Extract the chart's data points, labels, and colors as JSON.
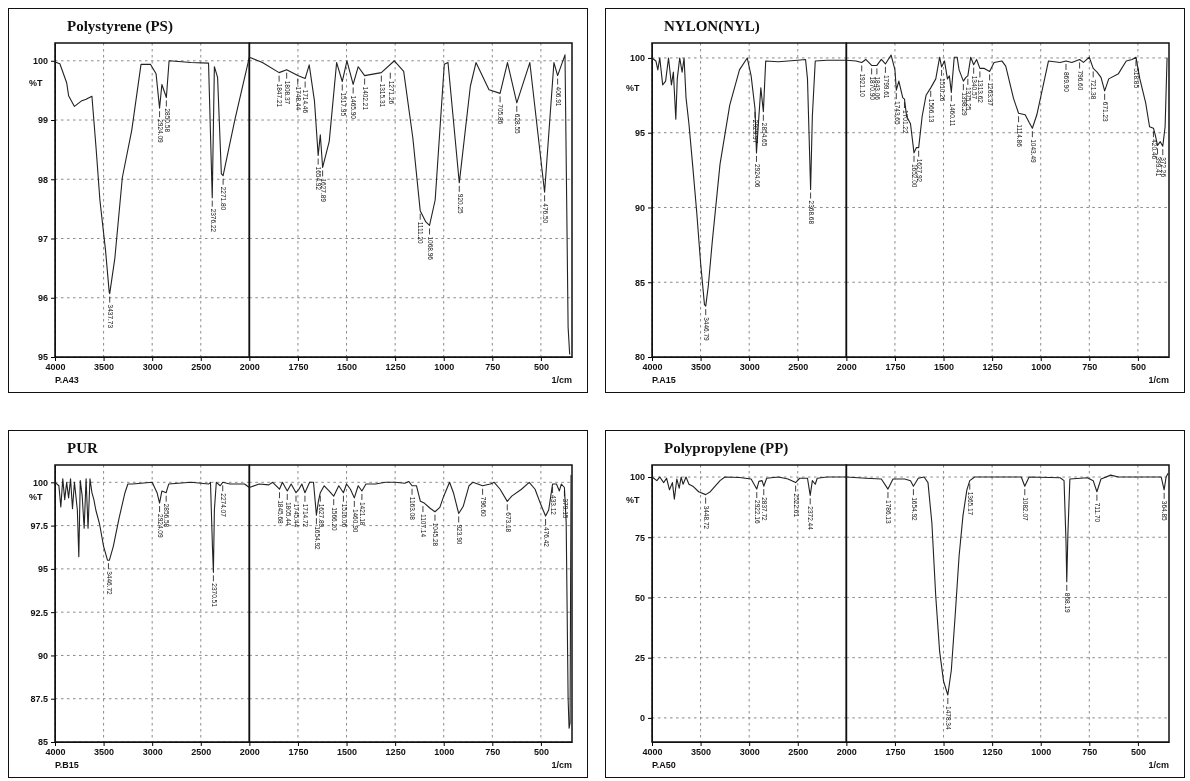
{
  "chart_data": [
    {
      "type": "line",
      "title": "Polystyrene (PS)",
      "ylabel": "%T",
      "xlim": [
        4000,
        2000
      ],
      "ylim": [
        95,
        100.3
      ],
      "xticks": [
        4000,
        3500,
        3000,
        2500
      ],
      "yticks": [
        95,
        96,
        97,
        98,
        99,
        100
      ],
      "grid": true,
      "series": [
        {
          "color": "#222222",
          "x": [
            4000,
            3950,
            3880,
            3860,
            3800,
            3730,
            3680,
            3620,
            3577,
            3538,
            3480,
            3442,
            3437,
            3384,
            3307,
            3210,
            3115,
            3018,
            2960,
            2924,
            2900,
            2854,
            2826,
            2600,
            2420,
            2382,
            2360,
            2327,
            2288,
            2270,
            2150,
            2000
          ],
          "values": [
            99.98,
            99.95,
            99.63,
            99.41,
            99.23,
            99.32,
            99.35,
            99.4,
            98.52,
            97.65,
            96.8,
            96.09,
            96.07,
            96.67,
            98.03,
            98.83,
            99.94,
            99.94,
            99.78,
            99.2,
            99.6,
            99.38,
            100,
            99.97,
            99.96,
            97.69,
            99.9,
            99.72,
            98.09,
            98.06,
            99.0,
            100.06
          ]
        }
      ],
      "annotations": [
        "P.A43",
        {
          "text": "3437.73",
          "x": 3437,
          "y": 96.07
        },
        {
          "text": "2924.09",
          "x": 2924,
          "y": 99.2
        },
        {
          "text": "2850.58",
          "x": 2854,
          "y": 99.38
        },
        {
          "text": "2376.22",
          "x": 2382,
          "y": 97.69
        },
        {
          "text": "2271.80",
          "x": 2270,
          "y": 98.06
        }
      ]
    },
    {
      "type": "line",
      "xlabel": "1/cm",
      "xlim": [
        2000,
        340
      ],
      "ylim": [
        95,
        100.3
      ],
      "xticks": [
        2000,
        1750,
        1500,
        1250,
        1000,
        750,
        500
      ],
      "yticks": [
        95,
        96,
        97,
        98,
        99,
        100
      ],
      "grid": true,
      "tick_labels": "x",
      "series": [
        {
          "color": "#222222",
          "x": [
            2000,
            1933,
            1847,
            1808,
            1751,
            1713,
            1692,
            1665,
            1646,
            1635,
            1623,
            1589,
            1551,
            1522,
            1498,
            1466,
            1440,
            1407,
            1321,
            1254,
            1206,
            1159,
            1121,
            1092,
            1073,
            1044,
            997,
            978,
            920,
            863,
            834,
            767,
            710,
            672,
            624,
            557,
            481,
            433,
            414,
            376,
            360,
            352
          ],
          "values": [
            100.06,
            99.97,
            99.8,
            99.85,
            99.75,
            99.7,
            99.93,
            99.32,
            98.4,
            98.75,
            98.2,
            98.64,
            99.97,
            99.65,
            100,
            99.6,
            99.9,
            99.75,
            99.8,
            100,
            99.82,
            98.7,
            97.47,
            97.28,
            97.22,
            97.65,
            99.94,
            99.97,
            97.94,
            99.57,
            99.97,
            99.51,
            99.45,
            99.97,
            99.29,
            99.97,
            97.78,
            99.97,
            99.75,
            100.1,
            95.5,
            95.05
          ]
        }
      ],
      "annotations": [
        {
          "text": "1847.21",
          "x": 1847,
          "y": 99.8
        },
        {
          "text": "1808.37",
          "x": 1808,
          "y": 99.85
        },
        {
          "text": "1748.44",
          "x": 1751,
          "y": 99.75
        },
        {
          "text": "1714.46",
          "x": 1713,
          "y": 99.7
        },
        {
          "text": "1654.92",
          "x": 1646,
          "y": 98.4
        },
        {
          "text": "1627.89",
          "x": 1623,
          "y": 98.2
        },
        {
          "text": "1517.95",
          "x": 1522,
          "y": 99.65
        },
        {
          "text": "1465.90",
          "x": 1466,
          "y": 99.6
        },
        {
          "text": "1402.21",
          "x": 1407,
          "y": 99.75
        },
        {
          "text": "1315.31",
          "x": 1321,
          "y": 99.8
        },
        {
          "text": "1271.26",
          "x": 1275,
          "y": 99.85
        },
        {
          "text": "1111.20",
          "x": 1121,
          "y": 97.47
        },
        {
          "text": "1068.96",
          "x": 1073,
          "y": 97.22
        },
        {
          "text": "920.25",
          "x": 920,
          "y": 97.94
        },
        {
          "text": "705.86",
          "x": 710,
          "y": 99.45
        },
        {
          "text": "628.55",
          "x": 624,
          "y": 99.29
        },
        {
          "text": "476.50",
          "x": 481,
          "y": 97.78
        },
        {
          "text": "406.91",
          "x": 414,
          "y": 99.75
        }
      ]
    },
    {
      "type": "line",
      "title": "NYLON(NYL)",
      "ylabel": "%T",
      "xlim": [
        4000,
        2000
      ],
      "ylim": [
        80,
        101
      ],
      "xticks": [
        4000,
        3500,
        3000,
        2500
      ],
      "yticks": [
        80,
        85,
        90,
        95,
        100
      ],
      "grid": true,
      "series": [
        {
          "color": "#222222",
          "x": [
            4000,
            3960,
            3940,
            3920,
            3890,
            3860,
            3830,
            3800,
            3780,
            3755,
            3740,
            3715,
            3690,
            3670,
            3650,
            3620,
            3580,
            3540,
            3500,
            3460,
            3447,
            3420,
            3380,
            3300,
            3200,
            3100,
            3020,
            2980,
            2940,
            2925,
            2900,
            2880,
            2854,
            2830,
            2700,
            2500,
            2420,
            2400,
            2368,
            2350,
            2320,
            2200,
            2000
          ],
          "values": [
            100,
            99.8,
            99.2,
            100,
            98.2,
            98.45,
            100,
            98.2,
            99.05,
            95.9,
            98.6,
            100,
            99.05,
            100,
            97.35,
            95.6,
            92.7,
            89.7,
            86.3,
            83.5,
            83.4,
            84.8,
            87.7,
            92.9,
            96.85,
            99.2,
            100,
            98.8,
            96.6,
            93.65,
            96.1,
            98,
            96.4,
            99.8,
            99.75,
            99.85,
            99.9,
            98.6,
            91.2,
            96.1,
            99.8,
            99.85,
            99.85
          ]
        }
      ],
      "annotations": [
        "P.A15",
        {
          "text": "3446.79",
          "x": 3447,
          "y": 83.4
        },
        {
          "text": "2929.97",
          "x": 2940,
          "y": 96.6
        },
        {
          "text": "2924.06",
          "x": 2925,
          "y": 93.65
        },
        {
          "text": "2854.65",
          "x": 2854,
          "y": 96.4
        },
        {
          "text": "2368.68",
          "x": 2368,
          "y": 91.2
        }
      ]
    },
    {
      "type": "line",
      "xlabel": "1/cm",
      "xlim": [
        2000,
        340
      ],
      "ylim": [
        80,
        101
      ],
      "xticks": [
        2000,
        1750,
        1500,
        1250,
        1000,
        750,
        500
      ],
      "yticks": [
        80,
        85,
        90,
        95,
        100
      ],
      "grid": true,
      "tick_labels": "x",
      "series": [
        {
          "color": "#222222",
          "x": [
            2000,
            1950,
            1921,
            1900,
            1870,
            1843,
            1820,
            1799,
            1770,
            1750,
            1743,
            1730,
            1710,
            1701,
            1690,
            1670,
            1652,
            1640,
            1628,
            1610,
            1590,
            1566,
            1540,
            1520,
            1510,
            1495,
            1480,
            1470,
            1460,
            1445,
            1430,
            1420,
            1398,
            1385,
            1375,
            1360,
            1345,
            1330,
            1313,
            1290,
            1263,
            1240,
            1200,
            1180,
            1140,
            1114,
            1080,
            1060,
            1043,
            1020,
            1000,
            960,
            900,
            870,
            840,
            800,
            780,
            750,
            730,
            710,
            690,
            671,
            650,
            600,
            560,
            530,
            510,
            490,
            460,
            440,
            420,
            410,
            399,
            385,
            372,
            360,
            350
          ],
          "values": [
            99.85,
            99.8,
            99.7,
            99.9,
            99.5,
            99.5,
            99.9,
            99.6,
            100.2,
            99.2,
            97.85,
            98.45,
            97.35,
            97.25,
            96.1,
            95.6,
            93.65,
            94.0,
            94.0,
            96.1,
            97.5,
            98,
            98.6,
            100.05,
            99.4,
            99.8,
            98.6,
            98.8,
            97.7,
            100.05,
            100.05,
            99.2,
            98.45,
            98.7,
            98.8,
            100.05,
            99.55,
            99.9,
            99.3,
            99.3,
            99.1,
            99.7,
            99.8,
            99.45,
            97.3,
            96.3,
            96.2,
            95.7,
            95.3,
            96.2,
            97.4,
            99.8,
            99.7,
            99.8,
            99.7,
            99.9,
            99.7,
            100.05,
            99.3,
            99.05,
            98.7,
            97.8,
            98.6,
            98.95,
            99.8,
            99.9,
            100.05,
            98.6,
            97.0,
            95.4,
            95.3,
            94.8,
            94.15,
            94.4,
            94.1,
            95.4,
            100
          ]
        }
      ],
      "annotations": [
        {
          "text": "1921.10",
          "x": 1921,
          "y": 99.7
        },
        {
          "text": "1870.90",
          "x": 1870,
          "y": 99.5
        },
        {
          "text": "1843.06",
          "x": 1843,
          "y": 99.5
        },
        {
          "text": "1799.61",
          "x": 1799,
          "y": 99.6
        },
        {
          "text": "1743.65",
          "x": 1743,
          "y": 97.85
        },
        {
          "text": "1701.22",
          "x": 1701,
          "y": 97.25
        },
        {
          "text": "1652.00",
          "x": 1652,
          "y": 93.65
        },
        {
          "text": "1627.92",
          "x": 1628,
          "y": 94.0
        },
        {
          "text": "1566.13",
          "x": 1566,
          "y": 98
        },
        {
          "text": "1510.26",
          "x": 1510,
          "y": 99.4
        },
        {
          "text": "1460.11",
          "x": 1460,
          "y": 97.7
        },
        {
          "text": "1398.29",
          "x": 1398,
          "y": 98.45
        },
        {
          "text": "1375.25",
          "x": 1375,
          "y": 98.8
        },
        {
          "text": "1340.57",
          "x": 1345,
          "y": 99.55
        },
        {
          "text": "1313.62",
          "x": 1313,
          "y": 99.3
        },
        {
          "text": "1263.37",
          "x": 1263,
          "y": 99.1
        },
        {
          "text": "1114.86",
          "x": 1114,
          "y": 96.3
        },
        {
          "text": "1043.49",
          "x": 1043,
          "y": 95.3
        },
        {
          "text": "869.90",
          "x": 870,
          "y": 99.8
        },
        {
          "text": "796.60",
          "x": 800,
          "y": 99.9
        },
        {
          "text": "721.38",
          "x": 730,
          "y": 99.3
        },
        {
          "text": "671.23",
          "x": 671,
          "y": 97.8
        },
        {
          "text": "518.85",
          "x": 510,
          "y": 100.05
        },
        {
          "text": "420.46",
          "x": 420,
          "y": 95.3
        },
        {
          "text": "399.41",
          "x": 399,
          "y": 94.15
        },
        {
          "text": "372.26",
          "x": 372,
          "y": 94.1
        }
      ]
    },
    {
      "type": "line",
      "title": "PUR",
      "ylabel": "%T",
      "xlim": [
        4000,
        2000
      ],
      "ylim": [
        85,
        101
      ],
      "xticks": [
        4000,
        3500,
        3000,
        2500
      ],
      "yticks": [
        85,
        87.5,
        90,
        92.5,
        95,
        97.5,
        100
      ],
      "grid": true,
      "series": [
        {
          "color": "#222222",
          "x": [
            4000,
            3960,
            3940,
            3920,
            3900,
            3880,
            3860,
            3840,
            3820,
            3800,
            3770,
            3755,
            3740,
            3720,
            3700,
            3680,
            3660,
            3640,
            3620,
            3600,
            3580,
            3540,
            3500,
            3460,
            3440,
            3400,
            3340,
            3280,
            3250,
            3200,
            3000,
            2950,
            2924,
            2900,
            2856,
            2830,
            2600,
            2420,
            2400,
            2380,
            2370,
            2360,
            2340,
            2300,
            2274,
            2200,
            2050,
            2000
          ],
          "values": [
            100,
            99.8,
            98.57,
            100.2,
            99,
            100,
            99.1,
            100.2,
            98.47,
            100,
            98.4,
            95.7,
            100.1,
            99.2,
            97.35,
            100.2,
            97.35,
            100.2,
            99.4,
            99,
            98.4,
            97.55,
            96.3,
            95.5,
            95.5,
            96.3,
            97.95,
            99.4,
            99.9,
            99.9,
            100,
            99.4,
            98.8,
            99.5,
            99.4,
            99.9,
            100,
            99.9,
            100,
            96.3,
            94.8,
            98.4,
            100,
            99.8,
            100,
            99.9,
            99.9,
            99.7
          ]
        }
      ],
      "annotations": [
        "P.B15",
        {
          "text": "3446.72",
          "x": 3450,
          "y": 95.5
        },
        {
          "text": "2924.09",
          "x": 2924,
          "y": 98.8
        },
        {
          "text": "2856.58",
          "x": 2856,
          "y": 99.4
        },
        {
          "text": "2370.51",
          "x": 2370,
          "y": 94.8
        },
        {
          "text": "2274.07",
          "x": 2274,
          "y": 100
        }
      ]
    },
    {
      "type": "line",
      "xlabel": "1/cm",
      "xlim": [
        2000,
        340
      ],
      "ylim": [
        85,
        101
      ],
      "xticks": [
        2000,
        1750,
        1500,
        1250,
        1000,
        750,
        500
      ],
      "yticks": [
        85,
        87.5,
        90,
        92.5,
        95,
        97.5,
        100
      ],
      "grid": true,
      "tick_labels": "x",
      "series": [
        {
          "color": "#222222",
          "x": [
            2000,
            1950,
            1900,
            1880,
            1845,
            1830,
            1805,
            1785,
            1760,
            1745,
            1730,
            1714,
            1690,
            1670,
            1655,
            1645,
            1635,
            1615,
            1590,
            1566,
            1540,
            1516,
            1500,
            1480,
            1460,
            1440,
            1421,
            1400,
            1350,
            1300,
            1250,
            1200,
            1180,
            1163,
            1140,
            1120,
            1100,
            1070,
            1045,
            1020,
            1000,
            970,
            950,
            923,
            900,
            870,
            850,
            800,
            760,
            740,
            710,
            673,
            650,
            600,
            560,
            530,
            500,
            476,
            460,
            440,
            420,
            405,
            395,
            379,
            370,
            360,
            355,
            350,
            345
          ],
          "values": [
            99.7,
            99.9,
            99.85,
            100,
            99.6,
            100,
            99.5,
            99.9,
            99.4,
            99.6,
            99.9,
            99.4,
            100,
            100,
            98.1,
            98.9,
            99.4,
            99.8,
            99.5,
            99.2,
            99.8,
            99.4,
            99.9,
            99.6,
            99.1,
            99.8,
            99.5,
            99.9,
            99.9,
            100,
            100,
            99.95,
            100.05,
            99.8,
            99.8,
            98.9,
            98.8,
            98.5,
            98.3,
            98.55,
            99.2,
            100,
            99.4,
            98.2,
            98.6,
            99.8,
            100,
            99.8,
            99.9,
            100,
            99.6,
            98.9,
            99.2,
            99.6,
            100,
            99.6,
            98.7,
            98.05,
            98.4,
            99.9,
            99.9,
            99.5,
            99.9,
            99.7,
            97.7,
            87.5,
            85.8,
            86.1,
            100.4
          ]
        }
      ],
      "annotations": [
        {
          "text": "1845.68",
          "x": 1845,
          "y": 99.6
        },
        {
          "text": "1805.44",
          "x": 1805,
          "y": 99.5
        },
        {
          "text": "1745.44",
          "x": 1760,
          "y": 99.4
        },
        {
          "text": "1714.72",
          "x": 1714,
          "y": 99.4
        },
        {
          "text": "1654.92",
          "x": 1655,
          "y": 98.1
        },
        {
          "text": "1627.89",
          "x": 1635,
          "y": 99.4
        },
        {
          "text": "1566.20",
          "x": 1566,
          "y": 99.2
        },
        {
          "text": "1516.06",
          "x": 1516,
          "y": 99.4
        },
        {
          "text": "1460.90",
          "x": 1460,
          "y": 99.1
        },
        {
          "text": "1421.18",
          "x": 1421,
          "y": 99.5
        },
        {
          "text": "1163.08",
          "x": 1163,
          "y": 99.8
        },
        {
          "text": "1107.14",
          "x": 1107,
          "y": 98.8
        },
        {
          "text": "1045.28",
          "x": 1045,
          "y": 98.3
        },
        {
          "text": "923.90",
          "x": 923,
          "y": 98.2
        },
        {
          "text": "796.60",
          "x": 800,
          "y": 99.8
        },
        {
          "text": "673.18",
          "x": 673,
          "y": 98.9
        },
        {
          "text": "476.42",
          "x": 476,
          "y": 98.05
        },
        {
          "text": "433.12",
          "x": 440,
          "y": 99.9
        },
        {
          "text": "379.15",
          "x": 379,
          "y": 99.7
        }
      ]
    },
    {
      "type": "line",
      "title": "Polypropylene (PP)",
      "ylabel": "%T",
      "xlim": [
        4000,
        2000
      ],
      "ylim": [
        -10,
        105
      ],
      "xticks": [
        4000,
        3500,
        3000,
        2500
      ],
      "yticks": [
        0,
        25,
        50,
        75,
        100
      ],
      "grid": true,
      "series": [
        {
          "color": "#222222",
          "x": [
            4000,
            3950,
            3920,
            3880,
            3850,
            3820,
            3790,
            3770,
            3745,
            3720,
            3700,
            3680,
            3650,
            3620,
            3580,
            3520,
            3448,
            3400,
            3300,
            3250,
            3100,
            2980,
            2922,
            2900,
            2867,
            2850,
            2820,
            2700,
            2600,
            2522,
            2480,
            2400,
            2372,
            2350,
            2320,
            2300,
            2200,
            2000
          ],
          "values": [
            100,
            98.5,
            100,
            97.7,
            99.5,
            94.7,
            97.7,
            90.8,
            99.2,
            95.4,
            100,
            97,
            100,
            97,
            96.2,
            93.9,
            92.7,
            93.9,
            98.5,
            100,
            99.8,
            99.2,
            95,
            98.2,
            98.5,
            96.2,
            99.5,
            100,
            99.2,
            97.7,
            99.5,
            99.5,
            92.4,
            98.5,
            97,
            99.5,
            100,
            100
          ]
        }
      ],
      "annotations": [
        "P.A50",
        {
          "text": "3448.72",
          "x": 3448,
          "y": 92.7
        },
        {
          "text": "2922.16",
          "x": 2922,
          "y": 95
        },
        {
          "text": "2837.72",
          "x": 2850,
          "y": 96.2
        },
        {
          "text": "2522.61",
          "x": 2522,
          "y": 97.7
        },
        {
          "text": "2372.44",
          "x": 2372,
          "y": 92.4
        }
      ]
    },
    {
      "type": "line",
      "xlabel": "1/cm",
      "xlim": [
        2000,
        340
      ],
      "ylim": [
        -10,
        105
      ],
      "xticks": [
        2000,
        1750,
        1500,
        1250,
        1000,
        750,
        500
      ],
      "yticks": [
        0,
        25,
        50,
        75,
        100
      ],
      "grid": true,
      "tick_labels": "x",
      "series": [
        {
          "color": "#222222",
          "x": [
            2000,
            1900,
            1820,
            1786,
            1760,
            1700,
            1670,
            1655,
            1630,
            1600,
            1580,
            1560,
            1540,
            1520,
            1500,
            1478,
            1460,
            1440,
            1420,
            1400,
            1380,
            1365,
            1340,
            1200,
            1100,
            1082,
            1060,
            900,
            880,
            870,
            866,
            860,
            850,
            760,
            730,
            711,
            690,
            640,
            600,
            500,
            380,
            365,
            355,
            345
          ],
          "values": [
            100,
            99.5,
            99.2,
            95,
            99.2,
            99.2,
            98.5,
            96.2,
            99.5,
            100,
            97.7,
            80.9,
            50.4,
            27.5,
            15.3,
            9.5,
            19.8,
            42.7,
            67.2,
            84,
            94.7,
            98.5,
            100,
            100,
            100,
            96.2,
            100,
            99.7,
            98.5,
            73.3,
            56.5,
            77,
            99.2,
            99.7,
            98.5,
            93.9,
            99.2,
            100.8,
            100,
            100,
            100,
            94.7,
            100,
            101.5
          ]
        }
      ],
      "annotations": [
        {
          "text": "1786.13",
          "x": 1786,
          "y": 95
        },
        {
          "text": "1654.92",
          "x": 1655,
          "y": 96.2
        },
        {
          "text": "1478.34",
          "x": 1478,
          "y": 9.5
        },
        {
          "text": "1365.17",
          "x": 1365,
          "y": 98.5
        },
        {
          "text": "1082.07",
          "x": 1082,
          "y": 96.2
        },
        {
          "text": "868.19",
          "x": 866,
          "y": 56.5
        },
        {
          "text": "711.70",
          "x": 711,
          "y": 93.9
        },
        {
          "text": "364.85",
          "x": 365,
          "y": 94.7
        }
      ]
    }
  ]
}
